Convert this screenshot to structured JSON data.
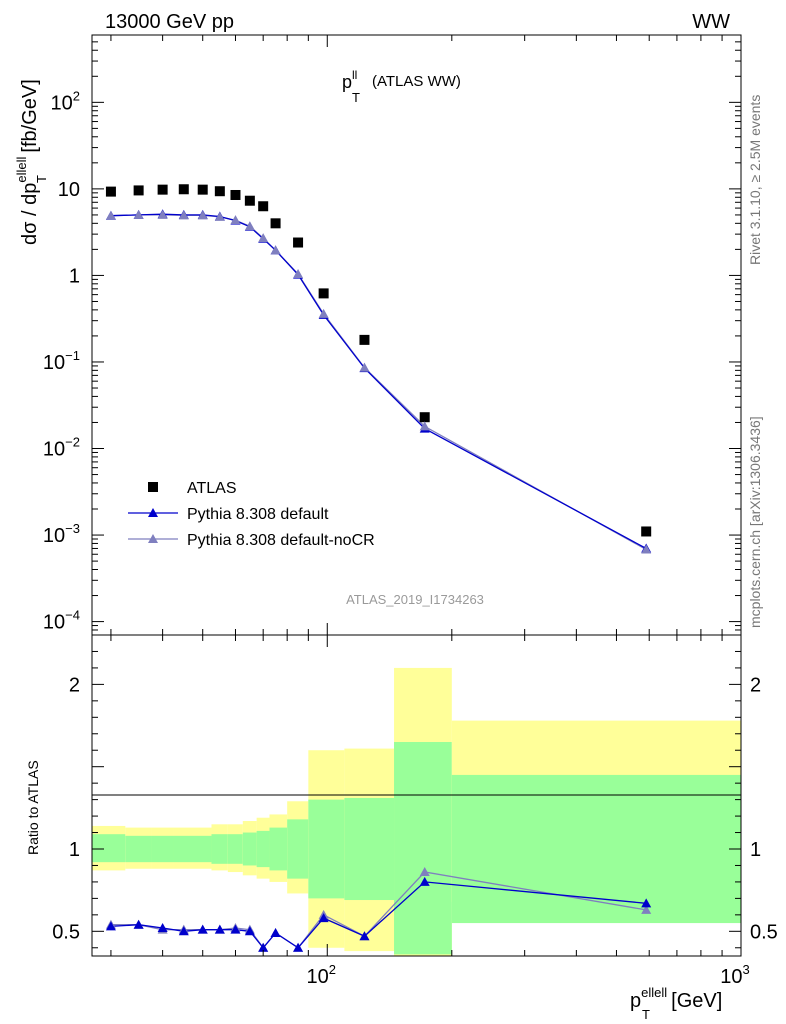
{
  "header": {
    "left": "13000 GeV pp",
    "right": "WW"
  },
  "side_labels": {
    "upper": "Rivet 3.1.10, ≥ 2.5M events",
    "lower": "mcplots.cern.ch [arXiv:1306.3436]"
  },
  "chart_data": [
    {
      "type": "scatter",
      "title_main": "p",
      "title_sup": "ll",
      "title_sub": "T",
      "title_rest": "(ATLAS WW)",
      "watermark": "ATLAS_2019_I1734263",
      "ylabel_prefix": "dσ / dp",
      "ylabel_sup": "ellell",
      "ylabel_sub": "T",
      "ylabel_suffix": "[fb/GeV]",
      "xscale": "log",
      "yscale": "log",
      "xlim": [
        27,
        1000
      ],
      "ylim": [
        7e-05,
        600
      ],
      "ytick_labels": [
        {
          "base": "10",
          "exp": "2",
          "value": 100
        },
        {
          "base": "10",
          "exp": "",
          "value": 10
        },
        {
          "base": "1",
          "exp": "",
          "value": 1
        },
        {
          "base": "10",
          "exp": "−1",
          "value": 0.1
        },
        {
          "base": "10",
          "exp": "−2",
          "value": 0.01
        },
        {
          "base": "10",
          "exp": "−3",
          "value": 0.001
        },
        {
          "base": "10",
          "exp": "−4",
          "value": 0.0001
        }
      ],
      "legend_position": "bottom-left",
      "series": [
        {
          "name": "ATLAS",
          "color": "#000000",
          "marker": "square",
          "x": [
            30,
            35,
            40,
            45,
            50,
            55,
            60,
            65,
            70,
            75,
            85,
            98,
            123,
            172,
            590
          ],
          "y": [
            9.3,
            9.6,
            9.8,
            9.9,
            9.8,
            9.4,
            8.5,
            7.3,
            6.3,
            4.0,
            2.4,
            0.62,
            0.18,
            0.023,
            0.0011
          ]
        },
        {
          "name": "Pythia 8.308 default",
          "color": "#0000cc",
          "marker": "triangle",
          "x": [
            30,
            35,
            40,
            45,
            50,
            55,
            60,
            65,
            70,
            75,
            85,
            98,
            123,
            172,
            590
          ],
          "y": [
            4.9,
            5.0,
            5.1,
            5.0,
            5.0,
            4.8,
            4.3,
            3.65,
            2.65,
            1.95,
            1.02,
            0.35,
            0.085,
            0.017,
            0.0007
          ]
        },
        {
          "name": "Pythia 8.308 default-noCR",
          "color": "#7f7fbf",
          "marker": "triangle",
          "x": [
            30,
            35,
            40,
            45,
            50,
            55,
            60,
            65,
            70,
            75,
            85,
            98,
            123,
            172,
            590
          ],
          "y": [
            4.9,
            5.0,
            5.0,
            4.95,
            4.95,
            4.75,
            4.35,
            3.7,
            2.7,
            1.95,
            1.04,
            0.36,
            0.086,
            0.018,
            0.00068
          ]
        }
      ]
    },
    {
      "type": "line",
      "ylabel": "Ratio to ATLAS",
      "xlabel_prefix": "p",
      "xlabel_sup": "ellell",
      "xlabel_sub": "T",
      "xlabel_suffix": "[GeV]",
      "xscale": "log",
      "xlim": [
        27,
        1000
      ],
      "ylim": [
        0.35,
        2.3
      ],
      "ytick_labels": [
        "0.5",
        "1",
        "2"
      ],
      "xtick_labels": [
        {
          "base": "10",
          "exp": "2",
          "value": 100
        },
        {
          "base": "10",
          "exp": "3",
          "value": 1000
        }
      ],
      "bands": {
        "bin_edges": [
          27,
          32.5,
          37.5,
          42.5,
          47.5,
          52.5,
          57.5,
          62.5,
          67.5,
          72.5,
          80,
          90,
          110,
          145,
          200,
          1000
        ],
        "green_upper": [
          1.09,
          1.08,
          1.08,
          1.08,
          1.08,
          1.09,
          1.09,
          1.1,
          1.11,
          1.13,
          1.18,
          1.3,
          1.31,
          1.65,
          1.45
        ],
        "green_lower": [
          0.92,
          0.92,
          0.92,
          0.92,
          0.92,
          0.91,
          0.91,
          0.9,
          0.89,
          0.87,
          0.82,
          0.7,
          0.69,
          0.36,
          0.55
        ],
        "yellow_upper": [
          1.14,
          1.13,
          1.13,
          1.13,
          1.13,
          1.15,
          1.15,
          1.17,
          1.19,
          1.21,
          1.29,
          1.6,
          1.61,
          2.1,
          1.78
        ],
        "yellow_lower": [
          0.87,
          0.88,
          0.88,
          0.88,
          0.88,
          0.87,
          0.86,
          0.84,
          0.82,
          0.8,
          0.73,
          0.4,
          0.38,
          0.35,
          0.68
        ]
      },
      "series": [
        {
          "name": "Pythia 8.308 default",
          "color": "#0000cc",
          "x": [
            30,
            35,
            40,
            45,
            50,
            55,
            60,
            65,
            70,
            75,
            85,
            98,
            123,
            172,
            590
          ],
          "y": [
            0.53,
            0.54,
            0.52,
            0.5,
            0.51,
            0.51,
            0.51,
            0.5,
            0.4,
            0.49,
            0.4,
            0.58,
            0.47,
            0.8,
            0.67
          ]
        },
        {
          "name": "Pythia 8.308 default-noCR",
          "color": "#7f7fbf",
          "x": [
            30,
            35,
            40,
            45,
            50,
            55,
            60,
            65,
            70,
            75,
            85,
            98,
            123,
            172,
            590
          ],
          "y": [
            0.54,
            0.54,
            0.51,
            0.51,
            0.51,
            0.51,
            0.52,
            0.51,
            0.4,
            0.49,
            0.4,
            0.6,
            0.47,
            0.86,
            0.63
          ]
        }
      ]
    }
  ]
}
